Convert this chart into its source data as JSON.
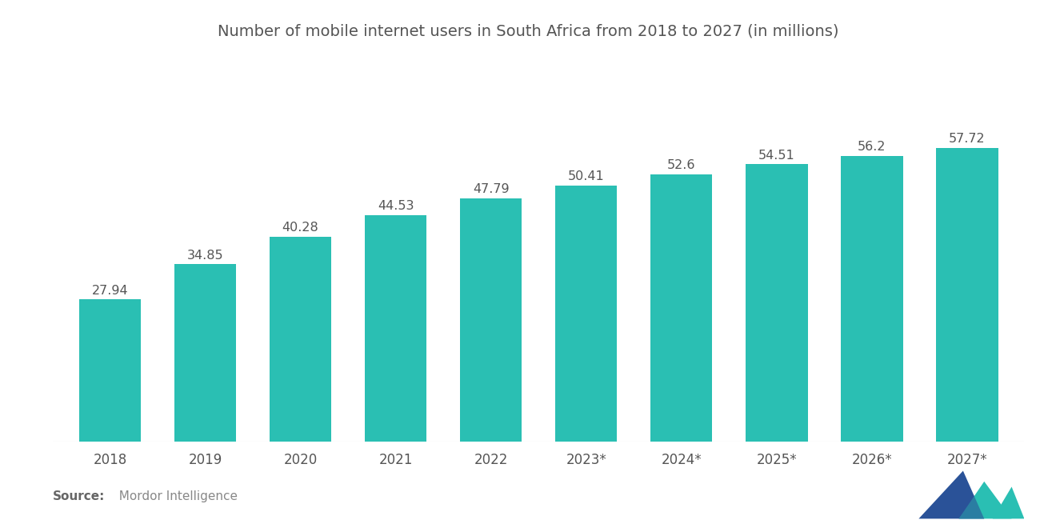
{
  "title": "Number of mobile internet users in South Africa from 2018 to 2027 (in millions)",
  "categories": [
    "2018",
    "2019",
    "2020",
    "2021",
    "2022",
    "2023*",
    "2024*",
    "2025*",
    "2026*",
    "2027*"
  ],
  "values": [
    27.94,
    34.85,
    40.28,
    44.53,
    47.79,
    50.41,
    52.6,
    54.51,
    56.2,
    57.72
  ],
  "bar_color": "#2abfb3",
  "background_color": "#ffffff",
  "title_color": "#555555",
  "label_color": "#555555",
  "tick_color": "#555555",
  "source_bold": "Source:",
  "source_text": "  Mordor Intelligence",
  "ylim": [
    0,
    68
  ],
  "title_fontsize": 14,
  "label_fontsize": 11.5,
  "tick_fontsize": 12,
  "logo_dark_color": "#2a5298",
  "logo_teal_color": "#2abfb3"
}
